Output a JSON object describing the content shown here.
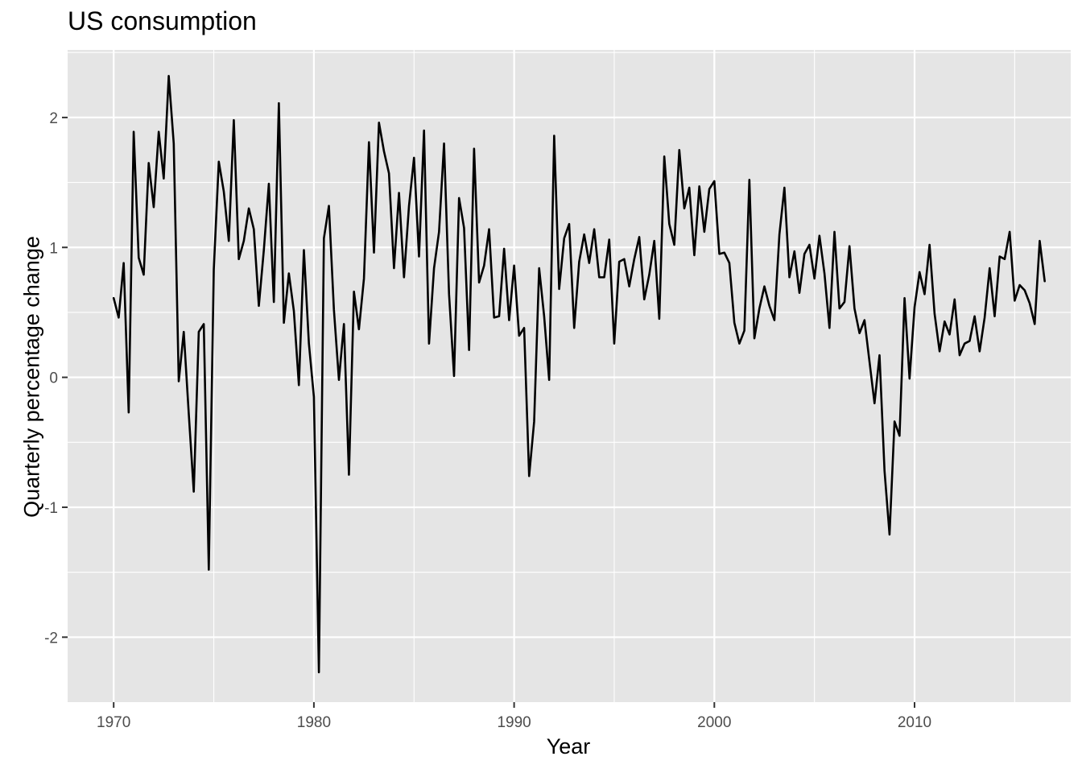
{
  "chart_data": {
    "type": "line",
    "title": "US consumption",
    "xlabel": "Year",
    "ylabel": "Quarterly percentage change",
    "xlim": [
      1967.7,
      2017.8
    ],
    "ylim": [
      -2.5,
      2.52
    ],
    "x_ticks": [
      1970,
      1980,
      1990,
      2000,
      2010
    ],
    "x_tick_labels": [
      "1970",
      "1980",
      "1990",
      "2000",
      "2010"
    ],
    "y_ticks": [
      -2,
      -1,
      0,
      1,
      2
    ],
    "y_tick_labels": [
      "-2",
      "-1",
      "0",
      "1",
      "2"
    ],
    "grid": true,
    "legend": "none",
    "colors": {
      "panel": "#e5e5e5",
      "grid": "#ffffff",
      "line": "#000000",
      "tick_text": "#4d4d4d",
      "tick_mark": "#333333"
    },
    "series": [
      {
        "x": [
          1970.0,
          1970.25,
          1970.5,
          1970.75,
          1971.0,
          1971.25,
          1971.5,
          1971.75,
          1972.0,
          1972.25,
          1972.5,
          1972.75,
          1973.0,
          1973.25,
          1973.5,
          1973.75,
          1974.0,
          1974.25,
          1974.5,
          1974.75,
          1975.0,
          1975.25,
          1975.5,
          1975.75,
          1976.0,
          1976.25,
          1976.5,
          1976.75,
          1977.0,
          1977.25,
          1977.5,
          1977.75,
          1978.0,
          1978.25,
          1978.5,
          1978.75,
          1979.0,
          1979.25,
          1979.5,
          1979.75,
          1980.0,
          1980.25,
          1980.5,
          1980.75,
          1981.0,
          1981.25,
          1981.5,
          1981.75,
          1982.0,
          1982.25,
          1982.5,
          1982.75,
          1983.0,
          1983.25,
          1983.5,
          1983.75,
          1984.0,
          1984.25,
          1984.5,
          1984.75,
          1985.0,
          1985.25,
          1985.5,
          1985.75,
          1986.0,
          1986.25,
          1986.5,
          1986.75,
          1987.0,
          1987.25,
          1987.5,
          1987.75,
          1988.0,
          1988.25,
          1988.5,
          1988.75,
          1989.0,
          1989.25,
          1989.5,
          1989.75,
          1990.0,
          1990.25,
          1990.5,
          1990.75,
          1991.0,
          1991.25,
          1991.5,
          1991.75,
          1992.0,
          1992.25,
          1992.5,
          1992.75,
          1993.0,
          1993.25,
          1993.5,
          1993.75,
          1994.0,
          1994.25,
          1994.5,
          1994.75,
          1995.0,
          1995.25,
          1995.5,
          1995.75,
          1996.0,
          1996.25,
          1996.5,
          1996.75,
          1997.0,
          1997.25,
          1997.5,
          1997.75,
          1998.0,
          1998.25,
          1998.5,
          1998.75,
          1999.0,
          1999.25,
          1999.5,
          1999.75,
          2000.0,
          2000.25,
          2000.5,
          2000.75,
          2001.0,
          2001.25,
          2001.5,
          2001.75,
          2002.0,
          2002.25,
          2002.5,
          2002.75,
          2003.0,
          2003.25,
          2003.5,
          2003.75,
          2004.0,
          2004.25,
          2004.5,
          2004.75,
          2005.0,
          2005.25,
          2005.5,
          2005.75,
          2006.0,
          2006.25,
          2006.5,
          2006.75,
          2007.0,
          2007.25,
          2007.5,
          2007.75,
          2008.0,
          2008.25,
          2008.5,
          2008.75,
          2009.0,
          2009.25,
          2009.5,
          2009.75,
          2010.0,
          2010.25,
          2010.5,
          2010.75,
          2011.0,
          2011.25,
          2011.5,
          2011.75,
          2012.0,
          2012.25,
          2012.5,
          2012.75,
          2013.0,
          2013.25,
          2013.5,
          2013.75,
          2014.0,
          2014.25,
          2014.5,
          2014.75,
          2015.0,
          2015.25,
          2015.5,
          2015.75,
          2016.0,
          2016.25,
          2016.5
        ],
        "y": [
          0.61,
          0.46,
          0.88,
          -0.27,
          1.89,
          0.92,
          0.79,
          1.65,
          1.31,
          1.89,
          1.53,
          2.32,
          1.8,
          -0.03,
          0.35,
          -0.28,
          -0.88,
          0.35,
          0.41,
          -1.48,
          0.83,
          1.66,
          1.43,
          1.05,
          1.98,
          0.91,
          1.05,
          1.3,
          1.14,
          0.55,
          0.98,
          1.49,
          0.58,
          2.11,
          0.42,
          0.8,
          0.51,
          -0.06,
          0.98,
          0.26,
          -0.15,
          -2.27,
          1.07,
          1.32,
          0.52,
          -0.02,
          0.41,
          -0.75,
          0.66,
          0.37,
          0.76,
          1.81,
          0.96,
          1.96,
          1.74,
          1.57,
          0.84,
          1.42,
          0.77,
          1.32,
          1.69,
          0.93,
          1.9,
          0.26,
          0.84,
          1.12,
          1.8,
          0.64,
          0.01,
          1.38,
          1.15,
          0.21,
          1.76,
          0.73,
          0.86,
          1.14,
          0.46,
          0.47,
          0.99,
          0.44,
          0.86,
          0.32,
          0.38,
          -0.76,
          -0.34,
          0.84,
          0.47,
          -0.02,
          1.86,
          0.68,
          1.07,
          1.18,
          0.38,
          0.89,
          1.1,
          0.88,
          1.14,
          0.77,
          0.77,
          1.06,
          0.26,
          0.89,
          0.91,
          0.7,
          0.91,
          1.08,
          0.6,
          0.79,
          1.05,
          0.45,
          1.7,
          1.18,
          1.02,
          1.75,
          1.3,
          1.46,
          0.94,
          1.47,
          1.12,
          1.45,
          1.51,
          0.95,
          0.96,
          0.88,
          0.42,
          0.26,
          0.36,
          1.52,
          0.3,
          0.53,
          0.7,
          0.55,
          0.44,
          1.1,
          1.46,
          0.77,
          0.97,
          0.65,
          0.95,
          1.02,
          0.76,
          1.09,
          0.8,
          0.38,
          1.12,
          0.53,
          0.58,
          1.01,
          0.53,
          0.34,
          0.44,
          0.12,
          -0.2,
          0.17,
          -0.72,
          -1.21,
          -0.34,
          -0.45,
          0.61,
          -0.01,
          0.54,
          0.81,
          0.64,
          1.02,
          0.49,
          0.2,
          0.43,
          0.33,
          0.6,
          0.17,
          0.26,
          0.28,
          0.47,
          0.2,
          0.46,
          0.84,
          0.47,
          0.93,
          0.91,
          1.12,
          0.59,
          0.71,
          0.67,
          0.57,
          0.41,
          1.05,
          0.74
        ]
      }
    ]
  }
}
